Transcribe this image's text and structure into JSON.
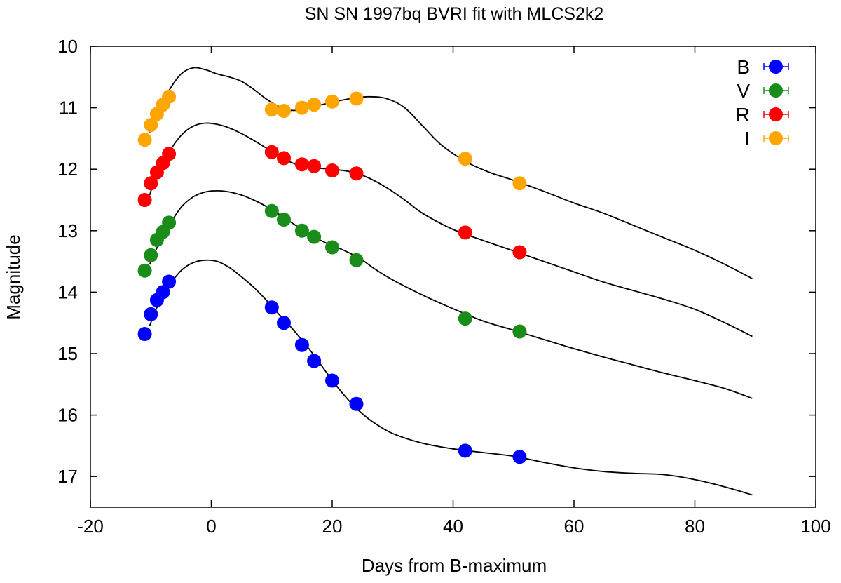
{
  "chart_data": {
    "type": "scatter",
    "title": "SN SN 1997bq BVRI fit with MLCS2k2",
    "xlabel": "Days from B-maximum",
    "ylabel": "Magnitude",
    "xlim": [
      -20,
      100
    ],
    "ylim": [
      10,
      17.5
    ],
    "y_inverted": true,
    "xticks": [
      "-20",
      "0",
      "20",
      "40",
      "60",
      "80",
      "100"
    ],
    "yticks": [
      "10",
      "11",
      "12",
      "13",
      "14",
      "15",
      "16",
      "17"
    ],
    "legend_position": "top-right",
    "series": [
      {
        "name": "B",
        "color": "#0000ff",
        "points": [
          [
            -11,
            14.68
          ],
          [
            -10,
            14.36
          ],
          [
            -9,
            14.13
          ],
          [
            -8,
            14.0
          ],
          [
            -7,
            13.83
          ],
          [
            10,
            14.25
          ],
          [
            12,
            14.5
          ],
          [
            15,
            14.86
          ],
          [
            17,
            15.12
          ],
          [
            20,
            15.44
          ],
          [
            24,
            15.82
          ],
          [
            42,
            16.58
          ],
          [
            51,
            16.68
          ]
        ],
        "model": [
          [
            -10.2,
            14.55
          ],
          [
            -9,
            14.25
          ],
          [
            -7,
            13.9
          ],
          [
            -5,
            13.65
          ],
          [
            -3,
            13.52
          ],
          [
            -1,
            13.48
          ],
          [
            1,
            13.5
          ],
          [
            3,
            13.6
          ],
          [
            5,
            13.75
          ],
          [
            7,
            13.92
          ],
          [
            9,
            14.12
          ],
          [
            11,
            14.34
          ],
          [
            13,
            14.55
          ],
          [
            15,
            14.78
          ],
          [
            17,
            15.03
          ],
          [
            19,
            15.3
          ],
          [
            21,
            15.56
          ],
          [
            23,
            15.79
          ],
          [
            25,
            15.98
          ],
          [
            27,
            16.13
          ],
          [
            30,
            16.3
          ],
          [
            35,
            16.46
          ],
          [
            40,
            16.55
          ],
          [
            45,
            16.61
          ],
          [
            50,
            16.67
          ],
          [
            55,
            16.77
          ],
          [
            60,
            16.86
          ],
          [
            65,
            16.92
          ],
          [
            70,
            16.95
          ],
          [
            75,
            16.97
          ],
          [
            80,
            17.05
          ],
          [
            85,
            17.17
          ],
          [
            89.5,
            17.3
          ]
        ]
      },
      {
        "name": "V",
        "color": "#1a8c1a",
        "points": [
          [
            -11,
            13.65
          ],
          [
            -10,
            13.4
          ],
          [
            -9,
            13.15
          ],
          [
            -8,
            13.02
          ],
          [
            -7,
            12.87
          ],
          [
            10,
            12.68
          ],
          [
            12,
            12.82
          ],
          [
            15,
            13.0
          ],
          [
            17,
            13.1
          ],
          [
            20,
            13.27
          ],
          [
            24,
            13.48
          ],
          [
            42,
            14.43
          ],
          [
            51,
            14.64
          ]
        ],
        "model": [
          [
            -10.2,
            13.55
          ],
          [
            -9,
            13.28
          ],
          [
            -7,
            12.92
          ],
          [
            -5,
            12.62
          ],
          [
            -3,
            12.45
          ],
          [
            -1,
            12.37
          ],
          [
            1,
            12.35
          ],
          [
            3,
            12.37
          ],
          [
            5,
            12.42
          ],
          [
            7,
            12.5
          ],
          [
            9,
            12.6
          ],
          [
            11,
            12.72
          ],
          [
            13,
            12.85
          ],
          [
            15,
            12.98
          ],
          [
            17,
            13.1
          ],
          [
            19,
            13.2
          ],
          [
            21,
            13.28
          ],
          [
            23,
            13.37
          ],
          [
            25,
            13.48
          ],
          [
            27,
            13.62
          ],
          [
            30,
            13.8
          ],
          [
            35,
            14.05
          ],
          [
            40,
            14.27
          ],
          [
            45,
            14.47
          ],
          [
            50,
            14.62
          ],
          [
            55,
            14.77
          ],
          [
            60,
            14.92
          ],
          [
            65,
            15.06
          ],
          [
            70,
            15.19
          ],
          [
            75,
            15.32
          ],
          [
            80,
            15.44
          ],
          [
            85,
            15.57
          ],
          [
            89.5,
            15.73
          ]
        ]
      },
      {
        "name": "R",
        "color": "#ff0000",
        "points": [
          [
            -11,
            12.5
          ],
          [
            -10,
            12.23
          ],
          [
            -9,
            12.05
          ],
          [
            -8,
            11.9
          ],
          [
            -7,
            11.75
          ],
          [
            10,
            11.72
          ],
          [
            12,
            11.82
          ],
          [
            15,
            11.92
          ],
          [
            17,
            11.95
          ],
          [
            20,
            12.02
          ],
          [
            24,
            12.07
          ],
          [
            42,
            13.03
          ],
          [
            51,
            13.35
          ]
        ],
        "model": [
          [
            -10.2,
            12.42
          ],
          [
            -9,
            12.08
          ],
          [
            -7,
            11.72
          ],
          [
            -5,
            11.45
          ],
          [
            -3,
            11.3
          ],
          [
            -1,
            11.25
          ],
          [
            1,
            11.27
          ],
          [
            3,
            11.33
          ],
          [
            5,
            11.42
          ],
          [
            7,
            11.53
          ],
          [
            9,
            11.65
          ],
          [
            11,
            11.77
          ],
          [
            13,
            11.88
          ],
          [
            15,
            11.95
          ],
          [
            17,
            11.98
          ],
          [
            20,
            12.0
          ],
          [
            23,
            12.04
          ],
          [
            26,
            12.14
          ],
          [
            29,
            12.3
          ],
          [
            32,
            12.5
          ],
          [
            35,
            12.72
          ],
          [
            40,
            12.98
          ],
          [
            45,
            13.16
          ],
          [
            50,
            13.33
          ],
          [
            55,
            13.5
          ],
          [
            60,
            13.67
          ],
          [
            65,
            13.84
          ],
          [
            70,
            13.98
          ],
          [
            75,
            14.12
          ],
          [
            80,
            14.28
          ],
          [
            85,
            14.5
          ],
          [
            89.5,
            14.72
          ]
        ]
      },
      {
        "name": "I",
        "color": "#ffa500",
        "points": [
          [
            -11,
            11.52
          ],
          [
            -10,
            11.28
          ],
          [
            -9,
            11.1
          ],
          [
            -8,
            10.95
          ],
          [
            -7,
            10.82
          ],
          [
            10,
            11.03
          ],
          [
            12,
            11.05
          ],
          [
            15,
            11.0
          ],
          [
            17,
            10.95
          ],
          [
            20,
            10.9
          ],
          [
            24,
            10.85
          ],
          [
            42,
            11.83
          ],
          [
            51,
            12.23
          ]
        ],
        "model": [
          [
            -10.2,
            11.4
          ],
          [
            -9,
            11.1
          ],
          [
            -7,
            10.72
          ],
          [
            -5,
            10.45
          ],
          [
            -3,
            10.35
          ],
          [
            -1,
            10.38
          ],
          [
            1,
            10.45
          ],
          [
            3,
            10.5
          ],
          [
            5,
            10.57
          ],
          [
            7,
            10.7
          ],
          [
            9,
            10.85
          ],
          [
            11,
            10.97
          ],
          [
            13,
            11.04
          ],
          [
            15,
            11.03
          ],
          [
            17,
            10.98
          ],
          [
            20,
            10.91
          ],
          [
            23,
            10.85
          ],
          [
            26,
            10.82
          ],
          [
            29,
            10.85
          ],
          [
            32,
            11.0
          ],
          [
            35,
            11.3
          ],
          [
            38,
            11.6
          ],
          [
            42,
            11.87
          ],
          [
            46,
            12.05
          ],
          [
            50,
            12.18
          ],
          [
            55,
            12.36
          ],
          [
            60,
            12.55
          ],
          [
            65,
            12.72
          ],
          [
            70,
            12.92
          ],
          [
            75,
            13.12
          ],
          [
            80,
            13.32
          ],
          [
            85,
            13.55
          ],
          [
            89.5,
            13.78
          ]
        ]
      }
    ]
  }
}
